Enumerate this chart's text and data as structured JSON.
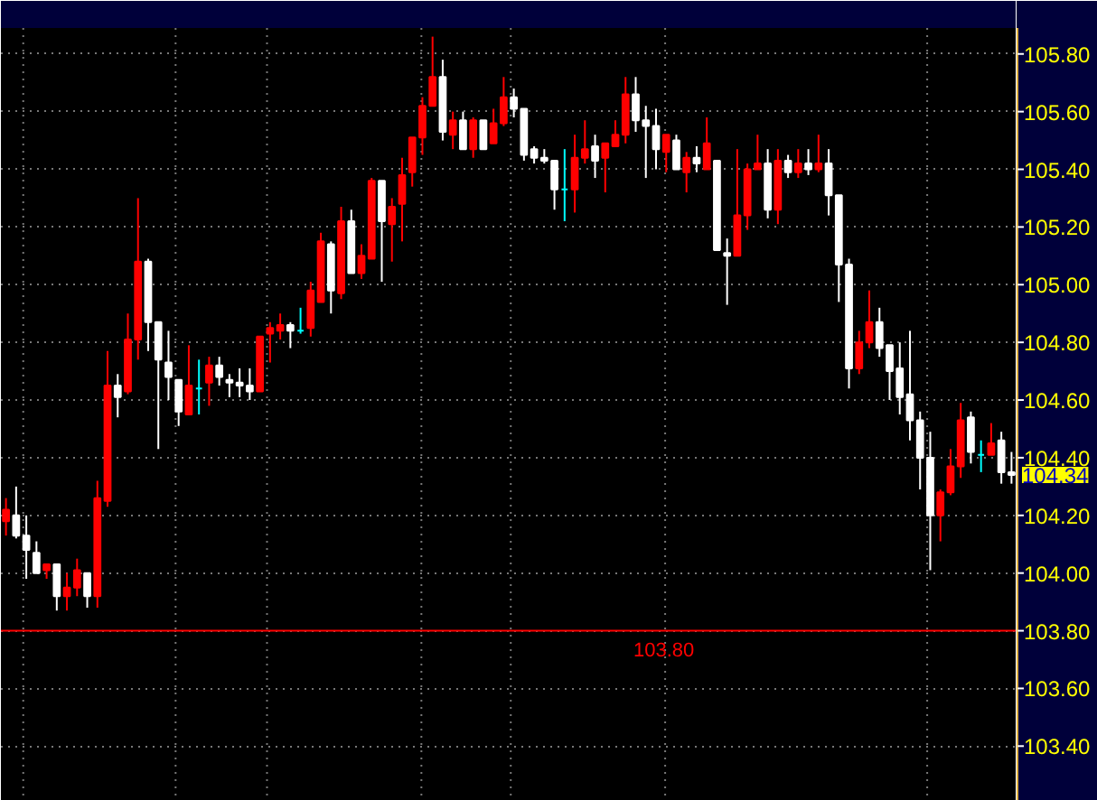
{
  "chart_data": {
    "type": "candlestick",
    "categories": [
      null,
      null,
      null,
      null,
      null,
      null,
      null,
      null,
      null,
      null,
      null,
      null,
      null,
      null,
      null,
      null,
      null,
      null,
      null,
      null,
      null,
      null,
      null,
      null,
      null,
      null,
      null,
      null,
      null,
      null,
      null,
      null,
      null,
      null,
      null,
      null,
      null,
      null,
      null,
      null,
      null,
      null,
      null,
      null,
      null,
      null,
      null,
      null,
      null,
      null,
      null,
      null,
      null,
      null,
      null,
      null,
      null,
      null,
      null,
      null,
      null,
      null,
      null,
      null,
      null,
      null,
      null,
      null,
      null,
      null,
      null,
      null,
      null,
      null,
      null,
      null,
      null,
      null,
      null,
      null,
      null,
      null,
      null,
      null,
      null,
      null,
      null,
      null,
      null,
      null,
      null,
      null,
      null,
      null,
      null,
      null,
      null,
      null,
      null,
      null
    ],
    "ohlc": [
      [
        104.18,
        104.26,
        104.13,
        104.22
      ],
      [
        104.2,
        104.3,
        104.12,
        104.13
      ],
      [
        104.13,
        104.2,
        103.98,
        104.08
      ],
      [
        104.07,
        104.11,
        104.0,
        104.0
      ],
      [
        104.01,
        104.03,
        103.98,
        104.03
      ],
      [
        104.03,
        104.03,
        103.87,
        103.92
      ],
      [
        103.92,
        104.0,
        103.87,
        103.95
      ],
      [
        103.95,
        104.05,
        103.92,
        104.01
      ],
      [
        104.0,
        104.0,
        103.88,
        103.92
      ],
      [
        103.92,
        104.32,
        103.88,
        104.26
      ],
      [
        104.25,
        104.77,
        104.23,
        104.65
      ],
      [
        104.65,
        104.69,
        104.54,
        104.61
      ],
      [
        104.63,
        104.9,
        104.62,
        104.81
      ],
      [
        104.81,
        105.3,
        104.74,
        105.08
      ],
      [
        105.08,
        105.09,
        104.77,
        104.87
      ],
      [
        104.87,
        104.87,
        104.43,
        104.74
      ],
      [
        104.73,
        104.84,
        104.6,
        104.68
      ],
      [
        104.67,
        104.67,
        104.51,
        104.56
      ],
      [
        104.55,
        104.79,
        104.55,
        104.65
      ],
      [
        104.64,
        104.74,
        104.55,
        104.64
      ],
      [
        104.66,
        104.75,
        104.58,
        104.72
      ],
      [
        104.72,
        104.75,
        104.65,
        104.68
      ],
      [
        104.67,
        104.69,
        104.61,
        104.66
      ],
      [
        104.66,
        104.71,
        104.61,
        104.65
      ],
      [
        104.65,
        104.71,
        104.6,
        104.63
      ],
      [
        104.63,
        104.82,
        104.63,
        104.82
      ],
      [
        104.83,
        104.87,
        104.73,
        104.85
      ],
      [
        104.84,
        104.9,
        104.81,
        104.86
      ],
      [
        104.86,
        104.87,
        104.78,
        104.84
      ],
      [
        104.84,
        104.92,
        104.83,
        104.84
      ],
      [
        104.85,
        105.01,
        104.82,
        104.98
      ],
      [
        104.94,
        105.18,
        104.94,
        105.15
      ],
      [
        105.14,
        105.15,
        104.9,
        104.98
      ],
      [
        104.97,
        105.27,
        104.95,
        105.22
      ],
      [
        105.22,
        105.26,
        105.04,
        105.04
      ],
      [
        105.04,
        105.14,
        105.02,
        105.1
      ],
      [
        105.09,
        105.37,
        105.09,
        105.36
      ],
      [
        105.36,
        105.36,
        105.01,
        105.22
      ],
      [
        105.21,
        105.3,
        105.08,
        105.27
      ],
      [
        105.28,
        105.44,
        105.15,
        105.38
      ],
      [
        105.39,
        105.51,
        105.34,
        105.51
      ],
      [
        105.51,
        105.65,
        105.45,
        105.62
      ],
      [
        105.62,
        105.86,
        105.62,
        105.72
      ],
      [
        105.72,
        105.78,
        105.5,
        105.53
      ],
      [
        105.52,
        105.6,
        105.47,
        105.57
      ],
      [
        105.57,
        105.6,
        105.47,
        105.47
      ],
      [
        105.47,
        105.58,
        105.44,
        105.57
      ],
      [
        105.57,
        105.57,
        105.47,
        105.47
      ],
      [
        105.49,
        105.61,
        105.49,
        105.56
      ],
      [
        105.56,
        105.72,
        105.55,
        105.65
      ],
      [
        105.65,
        105.68,
        105.58,
        105.61
      ],
      [
        105.61,
        105.61,
        105.43,
        105.45
      ],
      [
        105.47,
        105.48,
        105.42,
        105.44
      ],
      [
        105.44,
        105.47,
        105.42,
        105.43
      ],
      [
        105.43,
        105.43,
        105.26,
        105.33
      ],
      [
        105.33,
        105.47,
        105.22,
        105.33
      ],
      [
        105.33,
        105.52,
        105.25,
        105.44
      ],
      [
        105.44,
        105.57,
        105.42,
        105.47
      ],
      [
        105.48,
        105.52,
        105.37,
        105.43
      ],
      [
        105.44,
        105.49,
        105.32,
        105.49
      ],
      [
        105.48,
        105.57,
        105.48,
        105.52
      ],
      [
        105.52,
        105.72,
        105.49,
        105.66
      ],
      [
        105.66,
        105.72,
        105.53,
        105.57
      ],
      [
        105.57,
        105.62,
        105.37,
        105.55
      ],
      [
        105.55,
        105.61,
        105.4,
        105.47
      ],
      [
        105.46,
        105.52,
        105.39,
        105.52
      ],
      [
        105.5,
        105.52,
        105.4,
        105.4
      ],
      [
        105.39,
        105.46,
        105.32,
        105.44
      ],
      [
        105.44,
        105.48,
        105.39,
        105.42
      ],
      [
        105.4,
        105.58,
        105.4,
        105.49
      ],
      [
        105.43,
        105.43,
        105.12,
        105.12
      ],
      [
        105.11,
        105.16,
        104.93,
        105.1
      ],
      [
        105.1,
        105.47,
        105.1,
        105.24
      ],
      [
        105.24,
        105.42,
        105.19,
        105.4
      ],
      [
        105.4,
        105.52,
        105.4,
        105.42
      ],
      [
        105.42,
        105.47,
        105.23,
        105.26
      ],
      [
        105.26,
        105.47,
        105.21,
        105.43
      ],
      [
        105.43,
        105.45,
        105.37,
        105.39
      ],
      [
        105.39,
        105.47,
        105.37,
        105.42
      ],
      [
        105.42,
        105.47,
        105.38,
        105.4
      ],
      [
        105.4,
        105.52,
        105.39,
        105.42
      ],
      [
        105.42,
        105.47,
        105.24,
        105.31
      ],
      [
        105.31,
        105.31,
        104.94,
        105.07
      ],
      [
        105.07,
        105.09,
        104.64,
        104.71
      ],
      [
        104.71,
        104.84,
        104.69,
        104.8
      ],
      [
        104.8,
        104.98,
        104.78,
        104.87
      ],
      [
        104.87,
        104.92,
        104.75,
        104.78
      ],
      [
        104.79,
        104.79,
        104.6,
        104.7
      ],
      [
        104.71,
        104.8,
        104.55,
        104.61
      ],
      [
        104.62,
        104.84,
        104.46,
        104.53
      ],
      [
        104.53,
        104.56,
        104.29,
        104.4
      ],
      [
        104.4,
        104.49,
        104.01,
        104.2
      ],
      [
        104.2,
        104.29,
        104.11,
        104.28
      ],
      [
        104.28,
        104.43,
        104.27,
        104.37
      ],
      [
        104.37,
        104.59,
        104.33,
        104.53
      ],
      [
        104.54,
        104.56,
        104.38,
        104.42
      ],
      [
        104.41,
        104.46,
        104.35,
        104.41
      ],
      [
        104.41,
        104.52,
        104.41,
        104.45
      ],
      [
        104.46,
        104.49,
        104.31,
        104.35
      ],
      [
        104.35,
        104.42,
        104.31,
        104.34
      ]
    ],
    "colors": [
      "#ff0000",
      "#ffffff",
      "#ffffff",
      "#ffffff",
      "#ff0000",
      "#ffffff",
      "#ff0000",
      "#ff0000",
      "#ffffff",
      "#ff0000",
      "#ff0000",
      "#ffffff",
      "#ff0000",
      "#ff0000",
      "#ffffff",
      "#ffffff",
      "#ffffff",
      "#ffffff",
      "#ff0000",
      "#00ffff",
      "#ff0000",
      "#ffffff",
      "#ffffff",
      "#ffffff",
      "#ffffff",
      "#ff0000",
      "#ff0000",
      "#ff0000",
      "#ffffff",
      "#00ffff",
      "#ff0000",
      "#ff0000",
      "#ffffff",
      "#ff0000",
      "#ffffff",
      "#ff0000",
      "#ff0000",
      "#ffffff",
      "#ff0000",
      "#ff0000",
      "#ff0000",
      "#ff0000",
      "#ff0000",
      "#ffffff",
      "#ff0000",
      "#ffffff",
      "#ff0000",
      "#ffffff",
      "#ff0000",
      "#ff0000",
      "#ffffff",
      "#ffffff",
      "#ffffff",
      "#ffffff",
      "#ffffff",
      "#00ffff",
      "#ff0000",
      "#ff0000",
      "#ffffff",
      "#ff0000",
      "#ff0000",
      "#ff0000",
      "#ffffff",
      "#ffffff",
      "#ffffff",
      "#ff0000",
      "#ffffff",
      "#ff0000",
      "#ffffff",
      "#ff0000",
      "#ffffff",
      "#ffffff",
      "#ff0000",
      "#ff0000",
      "#ff0000",
      "#ffffff",
      "#ff0000",
      "#ffffff",
      "#ff0000",
      "#ffffff",
      "#ff0000",
      "#ffffff",
      "#ffffff",
      "#ffffff",
      "#ff0000",
      "#ff0000",
      "#ffffff",
      "#ffffff",
      "#ffffff",
      "#ffffff",
      "#ffffff",
      "#ffffff",
      "#ff0000",
      "#ff0000",
      "#ff0000",
      "#ffffff",
      "#00ffff",
      "#ff0000",
      "#ffffff",
      "#ffffff"
    ],
    "ylim": [
      103.21,
      105.89
    ],
    "yticks": [
      {
        "value": 103.4,
        "label": "103.40"
      },
      {
        "value": 103.6,
        "label": "103.60"
      },
      {
        "value": 103.8,
        "label": "103.80"
      },
      {
        "value": 104.0,
        "label": "104.00"
      },
      {
        "value": 104.2,
        "label": "104.20"
      },
      {
        "value": 104.4,
        "label": "104.40"
      },
      {
        "value": 104.6,
        "label": "104.60"
      },
      {
        "value": 104.8,
        "label": "104.80"
      },
      {
        "value": 105.0,
        "label": "105.00"
      },
      {
        "value": 105.2,
        "label": "105.20"
      },
      {
        "value": 105.4,
        "label": "105.40"
      },
      {
        "value": 105.6,
        "label": "105.60"
      },
      {
        "value": 105.8,
        "label": "105.80"
      }
    ],
    "grid": "y",
    "tick_labels": "y",
    "ref_lines": [
      {
        "axis": "y",
        "value": 103.8,
        "label": "103.80",
        "color": "#ff0000"
      }
    ],
    "annotations": [
      "104.34"
    ]
  }
}
